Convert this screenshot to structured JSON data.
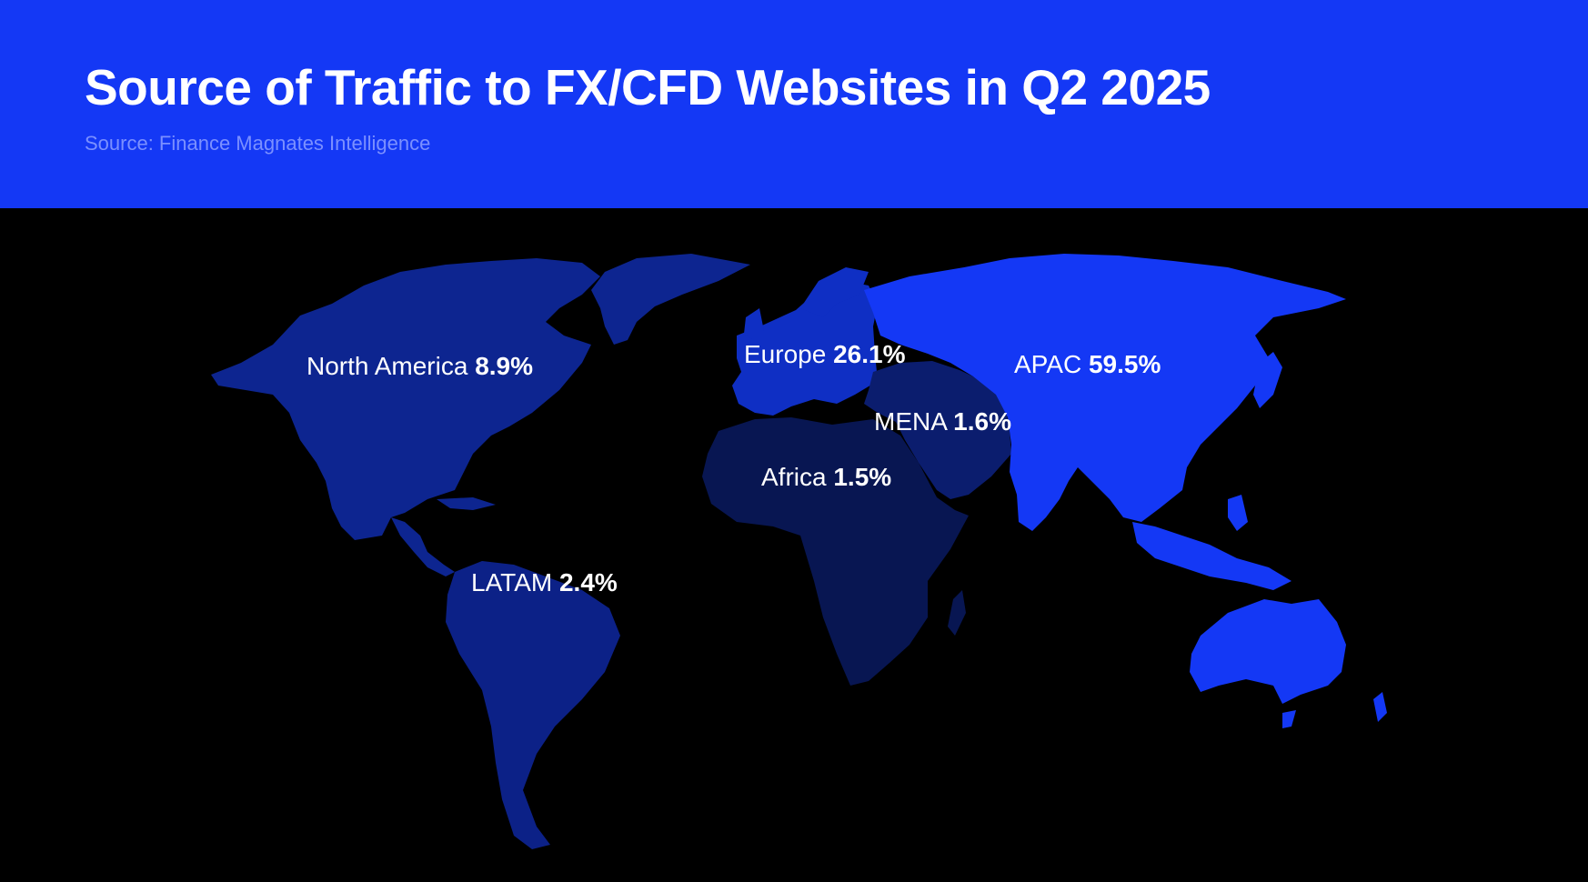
{
  "header": {
    "title": "Source of Traffic to FX/CFD Websites in Q2 2025",
    "subtitle": "Source: Finance Magnates Intelligence"
  },
  "colors": {
    "header_bg": "#1438f5",
    "background": "#000000",
    "apac": "#1438f5",
    "europe": "#0f2fc4",
    "north_america": "#0d2590",
    "latam": "#0c2187",
    "mena": "#0b1d6e",
    "africa": "#081652"
  },
  "chart_data": {
    "type": "choropleth_map",
    "title": "Source of Traffic to FX/CFD Websites in Q2 2025",
    "subtitle": "Source: Finance Magnates Intelligence",
    "unit": "%",
    "regions": [
      {
        "id": "north_america",
        "name": "North America",
        "value": 8.9,
        "value_label": "8.9%"
      },
      {
        "id": "europe",
        "name": "Europe",
        "value": 26.1,
        "value_label": "26.1%"
      },
      {
        "id": "apac",
        "name": "APAC",
        "value": 59.5,
        "value_label": "59.5%"
      },
      {
        "id": "mena",
        "name": "MENA",
        "value": 1.6,
        "value_label": "1.6%"
      },
      {
        "id": "africa",
        "name": "Africa",
        "value": 1.5,
        "value_label": "1.5%"
      },
      {
        "id": "latam",
        "name": "LATAM",
        "value": 2.4,
        "value_label": "2.4%"
      }
    ]
  }
}
